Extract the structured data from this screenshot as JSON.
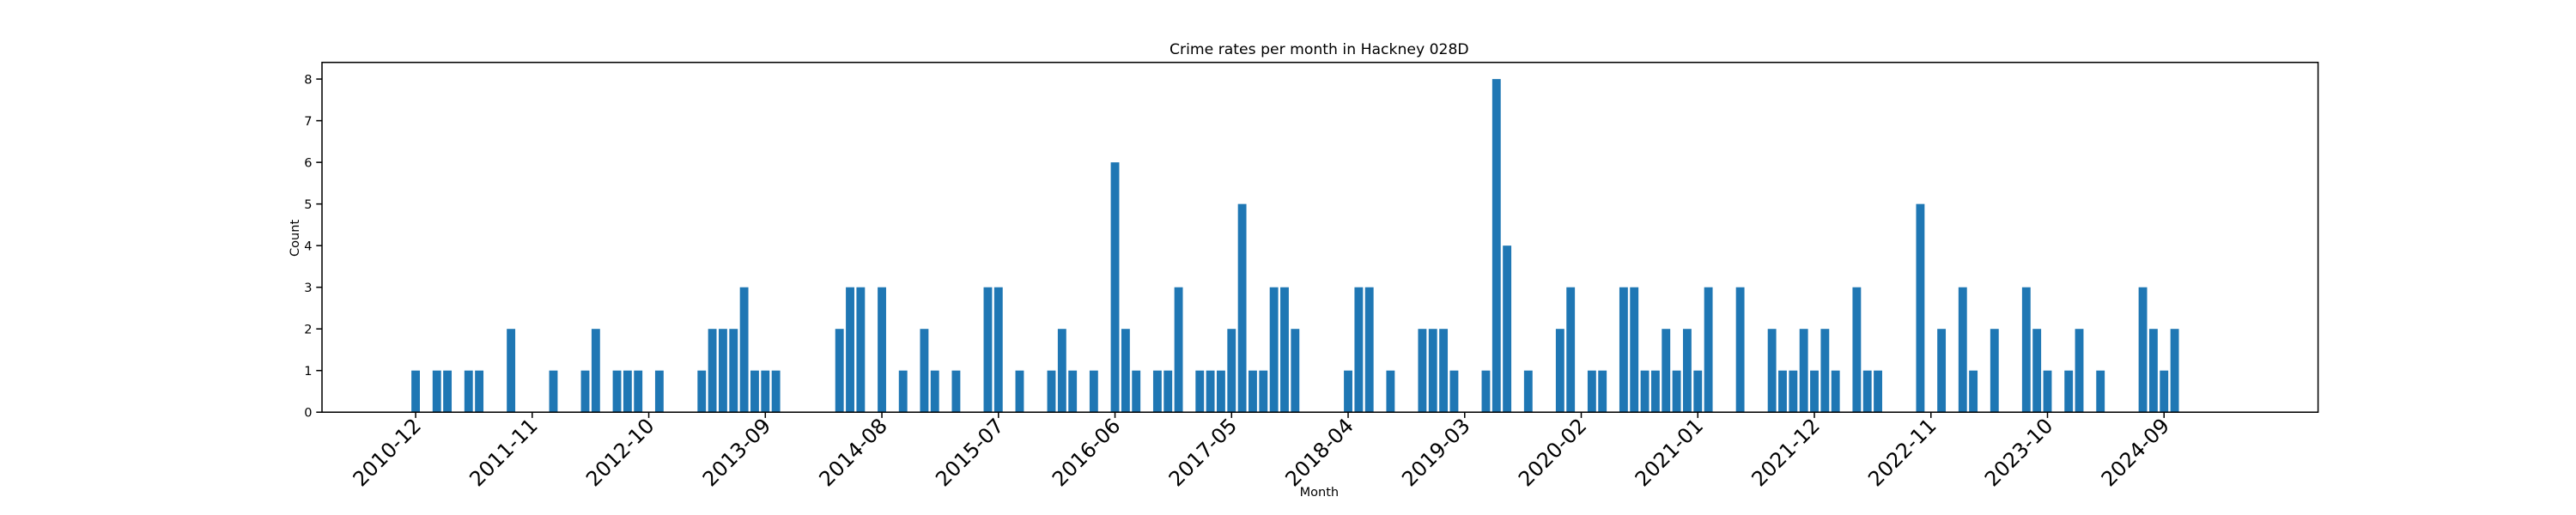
{
  "chart_data": {
    "type": "bar",
    "title": "Crime rates per month in Hackney 028D",
    "xlabel": "Month",
    "ylabel": "Count",
    "color": "#1f77b4",
    "categories": [
      "2010-12",
      null,
      null,
      null,
      null,
      null,
      null,
      null,
      null,
      null,
      null,
      "2011-11",
      null,
      null,
      null,
      null,
      null,
      null,
      null,
      null,
      null,
      null,
      "2012-10",
      null,
      null,
      null,
      null,
      null,
      null,
      null,
      null,
      null,
      null,
      "2013-09",
      null,
      null,
      null,
      null,
      null,
      null,
      null,
      null,
      null,
      null,
      "2014-08",
      null,
      null,
      null,
      null,
      null,
      null,
      null,
      null,
      null,
      null,
      "2015-07",
      null,
      null,
      null,
      null,
      null,
      null,
      null,
      null,
      null,
      null,
      "2016-06",
      null,
      null,
      null,
      null,
      null,
      null,
      null,
      null,
      null,
      null,
      "2017-05",
      null,
      null,
      null,
      null,
      null,
      null,
      null,
      null,
      null,
      null,
      "2018-04",
      null,
      null,
      null,
      null,
      null,
      null,
      null,
      null,
      null,
      null,
      "2019-03",
      null,
      null,
      null,
      null,
      null,
      null,
      null,
      null,
      null,
      null,
      "2020-02",
      null,
      null,
      null,
      null,
      null,
      null,
      null,
      null,
      null,
      null,
      "2021-01",
      null,
      null,
      null,
      null,
      null,
      null,
      null,
      null,
      null,
      null,
      "2021-12",
      null,
      null,
      null,
      null,
      null,
      null,
      null,
      null,
      null,
      null,
      "2022-11",
      null,
      null,
      null,
      null,
      null,
      null,
      null,
      null,
      null,
      null,
      "2023-10",
      null,
      null,
      null,
      null,
      null,
      null,
      null,
      null,
      null,
      null,
      "2024-09",
      null
    ],
    "values": [
      1,
      0,
      1,
      1,
      0,
      1,
      1,
      0,
      0,
      2,
      0,
      0,
      0,
      1,
      0,
      0,
      1,
      2,
      0,
      1,
      1,
      1,
      0,
      1,
      0,
      0,
      0,
      1,
      2,
      2,
      2,
      3,
      1,
      1,
      1,
      0,
      0,
      0,
      0,
      0,
      2,
      3,
      3,
      0,
      3,
      0,
      1,
      0,
      2,
      1,
      0,
      1,
      0,
      0,
      3,
      3,
      0,
      1,
      0,
      0,
      1,
      2,
      1,
      0,
      1,
      0,
      6,
      2,
      1,
      0,
      1,
      1,
      3,
      0,
      1,
      1,
      1,
      2,
      5,
      1,
      1,
      3,
      3,
      2,
      0,
      0,
      0,
      0,
      1,
      3,
      3,
      0,
      1,
      0,
      0,
      2,
      2,
      2,
      1,
      0,
      0,
      1,
      8,
      4,
      0,
      1,
      0,
      0,
      2,
      3,
      0,
      1,
      1,
      0,
      3,
      3,
      1,
      1,
      2,
      1,
      2,
      1,
      3,
      0,
      0,
      3,
      0,
      0,
      2,
      1,
      1,
      2,
      1,
      2,
      1,
      0,
      3,
      1,
      1,
      0,
      0,
      0,
      5,
      0,
      2,
      0,
      3,
      1,
      0,
      2,
      0,
      0,
      3,
      2,
      1,
      0,
      1,
      2,
      0,
      1,
      0,
      0,
      0,
      3,
      2,
      1,
      2
    ],
    "ylim": [
      0,
      8.4
    ],
    "yticks": [
      0,
      1,
      2,
      3,
      4,
      5,
      6,
      7,
      8
    ]
  }
}
